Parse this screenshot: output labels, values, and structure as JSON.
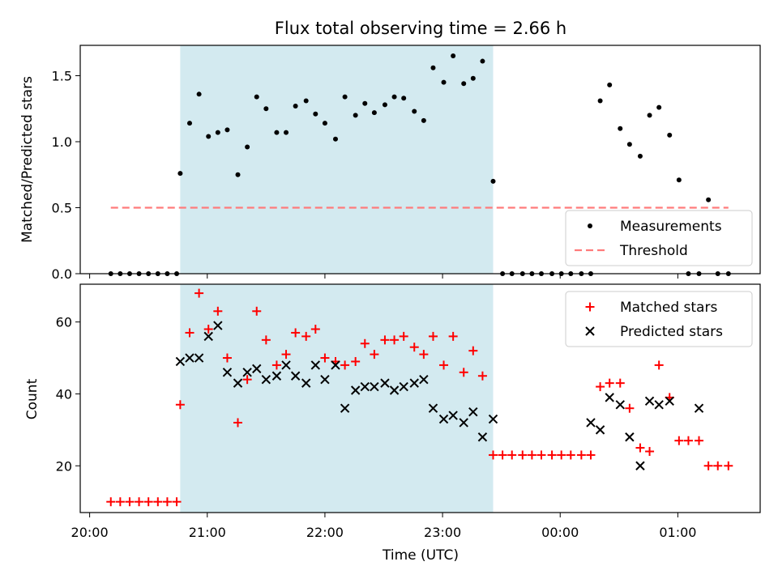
{
  "chart_data": [
    {
      "type": "scatter",
      "title": "Flux total observing time = 2.66 h",
      "xlabel": "",
      "ylabel": "Matched/Predicted stars",
      "x_unit": "hours since 20:00 UTC",
      "xlim": [
        -0.08,
        5.7
      ],
      "ylim": [
        0.0,
        1.73
      ],
      "yticks": [
        0.0,
        0.5,
        1.0,
        1.5
      ],
      "ytick_labels": [
        "0.0",
        "0.5",
        "1.0",
        "1.5"
      ],
      "shaded_interval": {
        "x": [
          0.77,
          3.43
        ],
        "color": "#d3eaf0"
      },
      "legend": {
        "placement": "lower-right",
        "entries": [
          "Measurements",
          "Threshold"
        ]
      },
      "series": [
        {
          "name": "Measurements",
          "marker": "dot",
          "color": "#000000",
          "x": [
            0.18,
            0.26,
            0.34,
            0.42,
            0.5,
            0.58,
            0.66,
            0.74,
            0.77,
            0.85,
            0.93,
            1.01,
            1.09,
            1.17,
            1.26,
            1.34,
            1.42,
            1.5,
            1.59,
            1.67,
            1.75,
            1.84,
            1.92,
            2.0,
            2.09,
            2.17,
            2.26,
            2.34,
            2.42,
            2.51,
            2.59,
            2.67,
            2.76,
            2.84,
            2.92,
            3.01,
            3.09,
            3.18,
            3.26,
            3.34,
            3.43,
            3.51,
            3.59,
            3.68,
            3.76,
            3.84,
            3.93,
            4.01,
            4.09,
            4.18,
            4.26,
            4.34,
            4.42,
            4.51,
            4.59,
            4.68,
            4.76,
            4.84,
            4.93,
            5.01,
            5.09,
            5.18,
            5.26,
            5.34,
            5.43
          ],
          "y": [
            0,
            0,
            0,
            0,
            0,
            0,
            0,
            0,
            0.76,
            1.14,
            1.36,
            1.04,
            1.07,
            1.09,
            0.75,
            0.96,
            1.34,
            1.25,
            1.07,
            1.07,
            1.27,
            1.31,
            1.21,
            1.14,
            1.02,
            1.34,
            1.2,
            1.29,
            1.22,
            1.28,
            1.34,
            1.33,
            1.23,
            1.16,
            1.56,
            1.45,
            1.65,
            1.44,
            1.48,
            1.61,
            0.7,
            0,
            0,
            0,
            0,
            0,
            0,
            0,
            0,
            0,
            0,
            1.31,
            1.43,
            1.1,
            0.98,
            0.89,
            1.2,
            1.26,
            1.05,
            0.71,
            0,
            0,
            0.56,
            0,
            0
          ]
        },
        {
          "name": "Threshold",
          "type": "line",
          "style": "dashed",
          "color": "#ff7b7b",
          "x": [
            0.18,
            5.43
          ],
          "y": [
            0.5,
            0.5
          ]
        }
      ]
    },
    {
      "type": "scatter",
      "title": "",
      "xlabel": "Time (UTC)",
      "ylabel": "Count",
      "x_unit": "hours since 20:00 UTC",
      "xlim": [
        -0.08,
        5.7
      ],
      "ylim": [
        7,
        70.5
      ],
      "xticks": [
        0,
        1,
        2,
        3,
        4,
        5
      ],
      "xtick_labels": [
        "20:00",
        "21:00",
        "22:00",
        "23:00",
        "00:00",
        "01:00"
      ],
      "yticks": [
        20,
        40,
        60
      ],
      "ytick_labels": [
        "20",
        "40",
        "60"
      ],
      "shaded_interval": {
        "x": [
          0.77,
          3.43
        ],
        "color": "#d3eaf0"
      },
      "legend": {
        "placement": "top-right",
        "entries": [
          "Matched stars",
          "Predicted stars"
        ]
      },
      "series": [
        {
          "name": "Matched stars",
          "marker": "plus",
          "color": "#ff0000",
          "x": [
            0.18,
            0.26,
            0.34,
            0.42,
            0.5,
            0.58,
            0.66,
            0.74,
            0.77,
            0.85,
            0.93,
            1.01,
            1.09,
            1.17,
            1.26,
            1.34,
            1.42,
            1.5,
            1.59,
            1.67,
            1.75,
            1.84,
            1.92,
            2.0,
            2.09,
            2.17,
            2.26,
            2.34,
            2.42,
            2.51,
            2.59,
            2.67,
            2.76,
            2.84,
            2.92,
            3.01,
            3.09,
            3.18,
            3.26,
            3.34,
            3.43,
            3.51,
            3.59,
            3.68,
            3.76,
            3.84,
            3.93,
            4.01,
            4.09,
            4.18,
            4.26,
            4.34,
            4.42,
            4.51,
            4.59,
            4.68,
            4.76,
            4.84,
            4.93,
            5.01,
            5.09,
            5.18,
            5.26,
            5.34,
            5.43
          ],
          "y": [
            10,
            10,
            10,
            10,
            10,
            10,
            10,
            10,
            37,
            57,
            68,
            58,
            63,
            50,
            32,
            44,
            63,
            55,
            48,
            51,
            57,
            56,
            58,
            50,
            49,
            48,
            49,
            54,
            51,
            55,
            55,
            56,
            53,
            51,
            56,
            48,
            56,
            46,
            52,
            45,
            23,
            23,
            23,
            23,
            23,
            23,
            23,
            23,
            23,
            23,
            23,
            42,
            43,
            43,
            36,
            25,
            24,
            48,
            39,
            27,
            27,
            27,
            20,
            20,
            20
          ]
        },
        {
          "name": "Predicted stars",
          "marker": "x",
          "color": "#000000",
          "x": [
            0.77,
            0.85,
            0.93,
            1.01,
            1.09,
            1.17,
            1.26,
            1.34,
            1.42,
            1.5,
            1.59,
            1.67,
            1.75,
            1.84,
            1.92,
            2.0,
            2.09,
            2.17,
            2.26,
            2.34,
            2.42,
            2.51,
            2.59,
            2.67,
            2.76,
            2.84,
            2.92,
            3.01,
            3.09,
            3.18,
            3.26,
            3.34,
            3.43,
            4.26,
            4.34,
            4.42,
            4.51,
            4.59,
            4.68,
            4.76,
            4.84,
            4.93,
            5.18
          ],
          "y": [
            49,
            50,
            50,
            56,
            59,
            46,
            43,
            46,
            47,
            44,
            45,
            48,
            45,
            43,
            48,
            44,
            48,
            36,
            41,
            42,
            42,
            43,
            41,
            42,
            43,
            44,
            36,
            33,
            34,
            32,
            35,
            28,
            33,
            32,
            30,
            39,
            37,
            28,
            20,
            38,
            37,
            38,
            36
          ]
        }
      ]
    }
  ]
}
